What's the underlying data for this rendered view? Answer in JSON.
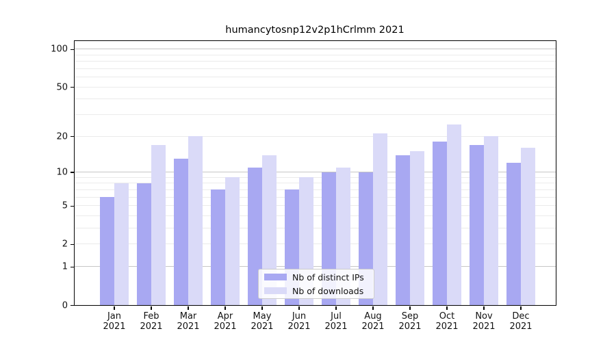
{
  "title": "humancytosnp12v2p1hCrlmm 2021",
  "chart_data": {
    "type": "bar",
    "title": "humancytosnp12v2p1hCrlmm 2021",
    "categories": [
      "Jan",
      "Feb",
      "Mar",
      "Apr",
      "May",
      "Jun",
      "Jul",
      "Aug",
      "Sep",
      "Oct",
      "Nov",
      "Dec"
    ],
    "year_label": "2021",
    "series": [
      {
        "name": "Nb of distinct IPs",
        "color": "#a8a8f2",
        "values": [
          6,
          8,
          13,
          7,
          11,
          7,
          10,
          10,
          14,
          18,
          17,
          12
        ]
      },
      {
        "name": "Nb of downloads",
        "color": "#dadaf8",
        "values": [
          8,
          17,
          20,
          9,
          14,
          9,
          11,
          21,
          15,
          25,
          20,
          16
        ]
      }
    ],
    "xlabel": "",
    "ylabel": "",
    "y_scale": "log10(value+1)",
    "y_ticks": [
      0,
      1,
      2,
      5,
      10,
      20,
      50,
      100
    ],
    "y_grid_values": [
      1,
      2,
      3,
      4,
      5,
      6,
      7,
      8,
      9,
      10,
      20,
      30,
      40,
      50,
      60,
      70,
      80,
      90,
      100
    ],
    "y_grid_decades": [
      1,
      10,
      100
    ],
    "ylim": [
      0,
      116
    ],
    "grid": "on",
    "legend_position": "bottom-center-inside",
    "colors": {
      "bar_ips": "#a8a8f2",
      "bar_downloads": "#dadaf8",
      "grid_minor": "#ebebeb",
      "grid_decade": "#c6c6c6",
      "axis": "#000000",
      "background": "#ffffff"
    }
  }
}
